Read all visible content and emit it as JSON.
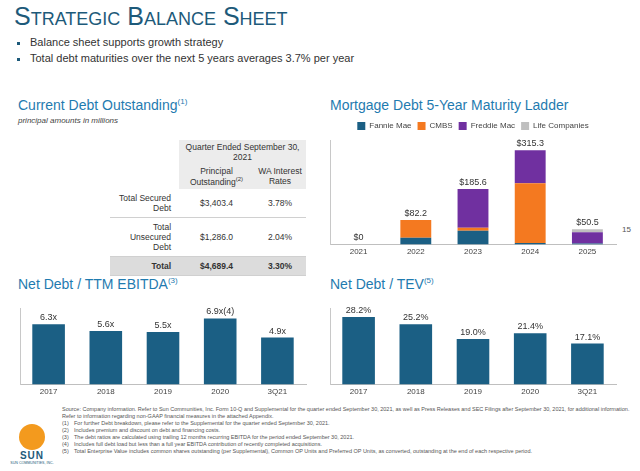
{
  "title": "Strategic Balance Sheet",
  "bullets": [
    "Balance sheet supports growth strategy",
    "Total debt maturities over the next 5 years averages 3.7% per year"
  ],
  "table": {
    "title": "Current Debt Outstanding",
    "title_note": "(1)",
    "subtitle": "principal amounts in millions",
    "header": "Quarter Ended September 30, 2021",
    "columns": [
      {
        "text": "Principal Outstanding",
        "note": "(2)"
      },
      {
        "text": "WA Interest Rates"
      }
    ],
    "rows": [
      {
        "label": "Total Secured Debt",
        "cells": [
          "$3,403.4",
          "3.78%"
        ]
      },
      {
        "label": "Total Unsecured Debt",
        "cells": [
          "$1,286.0",
          "2.04%"
        ]
      },
      {
        "label": "Total",
        "cells": [
          "$4,689.4",
          "3.30%"
        ]
      }
    ]
  },
  "chart_data": [
    {
      "type": "bar",
      "title": "Mortgage Debt 5-Year Maturity Ladder",
      "stacked": true,
      "categories": [
        "2021",
        "2022",
        "2023",
        "2024",
        "2025"
      ],
      "series": [
        {
          "name": "Fannie Mae",
          "color": "#1b5f84",
          "values": [
            0,
            22,
            46,
            5,
            3
          ]
        },
        {
          "name": "CMBS",
          "color": "#f47920",
          "values": [
            0,
            60.2,
            10,
            200,
            0
          ]
        },
        {
          "name": "Freddie Mac",
          "color": "#7030a0",
          "values": [
            0,
            0,
            129.6,
            110.3,
            37.5
          ]
        },
        {
          "name": "Life Companies",
          "color": "#bfbfbf",
          "values": [
            0,
            0,
            0,
            0,
            10
          ]
        }
      ],
      "totals": [
        0,
        82.2,
        185.6,
        315.3,
        50.5
      ],
      "total_labels": [
        "$0",
        "$82.2",
        "$185.6",
        "$315.3",
        "$50.5"
      ],
      "data_labels": true,
      "legend": "top",
      "grid": false,
      "tick_labels": "x",
      "ylim": [
        0,
        350
      ]
    },
    {
      "type": "bar",
      "title": "Net Debt / TTM EBITDA",
      "title_note": "(3)",
      "categories": [
        "2017",
        "2018",
        "2019",
        "2020",
        "3Q21"
      ],
      "values": [
        6.3,
        5.6,
        5.5,
        6.9,
        4.9
      ],
      "value_labels": [
        "6.3x",
        "5.6x",
        "5.5x",
        "6.9x(4)",
        "4.9x"
      ],
      "color": "#1b5f84",
      "data_labels": true,
      "grid": false,
      "tick_labels": "x",
      "ylim": [
        0,
        8
      ]
    },
    {
      "type": "bar",
      "title": "Net Debt / TEV",
      "title_note": "(5)",
      "categories": [
        "2017",
        "2018",
        "2019",
        "2020",
        "3Q21"
      ],
      "values": [
        28.2,
        25.2,
        19.0,
        21.4,
        17.1
      ],
      "value_labels": [
        "28.2%",
        "25.2%",
        "19.0%",
        "21.4%",
        "17.1%"
      ],
      "color": "#1b5f84",
      "data_labels": true,
      "grid": false,
      "tick_labels": "x",
      "ylim": [
        0,
        32
      ]
    }
  ],
  "page": "15",
  "logo": {
    "name": "SUN",
    "subtitle": "SUN COMMUNITIES, INC."
  },
  "footer": {
    "lines": [
      "Source: Company information. Refer to Sun Communities, Inc. Form 10-Q and Supplemental for the quarter ended September 30, 2021, as well as Press Releases and SEC Filings after September 30, 2021, for additional information.",
      "Refer to information regarding non-GAAP financial measures in the attached Appendix."
    ],
    "notes": [
      {
        "mark": "(1)",
        "text": "For further Debt breakdown, please refer to the Supplemental for the quarter ended September 30, 2021."
      },
      {
        "mark": "(2)",
        "text": "Includes premium and discount on debt and financing costs."
      },
      {
        "mark": "(3)",
        "text": "The debt ratios are calculated using trailing 12 months recurring EBITDA for the period ended September 30, 2021."
      },
      {
        "mark": "(4)",
        "text": "Includes full debt load but less than a full year EBITDA contribution of recently completed acquisitions."
      },
      {
        "mark": "(5)",
        "text": "Total Enterprise Value includes common shares outstanding (per Supplemental), Common OP Units and Preferred OP Units, as converted, outstanding at the end of each respective period."
      }
    ]
  }
}
